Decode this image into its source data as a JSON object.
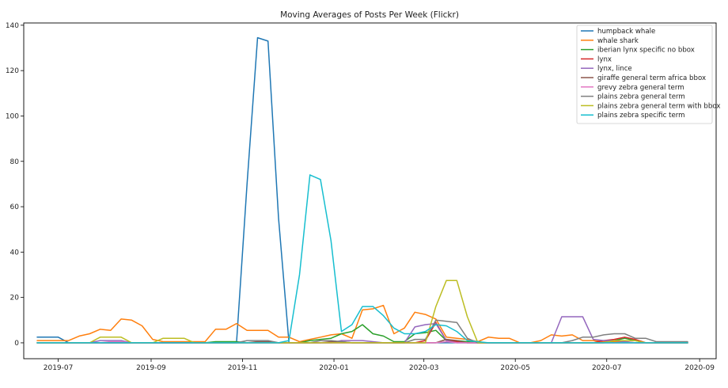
{
  "chart_data": {
    "type": "line",
    "title": "Moving Averages of Posts Per Week (Flickr)",
    "xlabel": "",
    "ylabel": "",
    "x_axis": "date",
    "xlim": [
      "2019-06-08",
      "2020-09-12"
    ],
    "ylim": [
      -7,
      141
    ],
    "x_ticks": [
      "2019-07-01",
      "2019-09-01",
      "2019-11-01",
      "2020-01-01",
      "2020-03-01",
      "2020-05-01",
      "2020-07-01",
      "2020-09-01"
    ],
    "x_tick_labels": [
      "2019-07",
      "2019-09",
      "2019-11",
      "2020-01",
      "2020-03",
      "2020-05",
      "2020-07",
      "2020-09"
    ],
    "y_ticks": [
      0,
      20,
      40,
      60,
      80,
      100,
      120,
      140
    ],
    "y_tick_labels": [
      "0",
      "20",
      "40",
      "60",
      "80",
      "100",
      "120",
      "140"
    ],
    "grid": false,
    "legend_position": "top-right",
    "series": [
      {
        "name": "humpback whale",
        "color": "#1f77b4",
        "points": [
          [
            "2019-06-17",
            2.5
          ],
          [
            "2019-06-24",
            2.5
          ],
          [
            "2019-07-01",
            2.5
          ],
          [
            "2019-07-08",
            0
          ],
          [
            "2019-10-28",
            0
          ],
          [
            "2019-11-04",
            70
          ],
          [
            "2019-11-11",
            134.5
          ],
          [
            "2019-11-18",
            133
          ],
          [
            "2019-11-25",
            55
          ],
          [
            "2019-12-02",
            0
          ],
          [
            "2020-08-24",
            0
          ]
        ]
      },
      {
        "name": "whale shark",
        "color": "#ff7f0e",
        "points": [
          [
            "2019-06-17",
            1
          ],
          [
            "2019-06-24",
            1
          ],
          [
            "2019-07-01",
            1
          ],
          [
            "2019-07-08",
            1
          ],
          [
            "2019-07-15",
            3
          ],
          [
            "2019-07-22",
            4
          ],
          [
            "2019-07-29",
            6
          ],
          [
            "2019-08-05",
            5.5
          ],
          [
            "2019-08-12",
            10.5
          ],
          [
            "2019-08-19",
            10
          ],
          [
            "2019-08-26",
            7.5
          ],
          [
            "2019-09-02",
            1.5
          ],
          [
            "2019-09-09",
            0.5
          ],
          [
            "2019-09-16",
            0.5
          ],
          [
            "2019-09-23",
            0.5
          ],
          [
            "2019-09-30",
            0.5
          ],
          [
            "2019-10-07",
            0.5
          ],
          [
            "2019-10-14",
            6
          ],
          [
            "2019-10-21",
            6
          ],
          [
            "2019-10-28",
            8.5
          ],
          [
            "2019-11-04",
            5.5
          ],
          [
            "2019-11-11",
            5.5
          ],
          [
            "2019-11-18",
            5.5
          ],
          [
            "2019-11-25",
            2.5
          ],
          [
            "2019-12-02",
            2.5
          ],
          [
            "2019-12-09",
            0.5
          ],
          [
            "2019-12-16",
            1.5
          ],
          [
            "2019-12-23",
            2.5
          ],
          [
            "2019-12-30",
            3.5
          ],
          [
            "2020-01-06",
            4
          ],
          [
            "2020-01-13",
            2
          ],
          [
            "2020-01-20",
            14.5
          ],
          [
            "2020-01-27",
            15
          ],
          [
            "2020-02-03",
            16.5
          ],
          [
            "2020-02-10",
            4
          ],
          [
            "2020-02-17",
            6.5
          ],
          [
            "2020-02-24",
            13.5
          ],
          [
            "2020-03-02",
            12.5
          ],
          [
            "2020-03-09",
            10.5
          ],
          [
            "2020-03-16",
            2.5
          ],
          [
            "2020-03-23",
            2
          ],
          [
            "2020-03-30",
            1.5
          ],
          [
            "2020-04-06",
            0.5
          ],
          [
            "2020-04-13",
            2.5
          ],
          [
            "2020-04-20",
            2
          ],
          [
            "2020-04-27",
            2
          ],
          [
            "2020-05-04",
            0
          ],
          [
            "2020-05-11",
            0
          ],
          [
            "2020-05-18",
            1
          ],
          [
            "2020-05-25",
            3.5
          ],
          [
            "2020-06-01",
            3
          ],
          [
            "2020-06-08",
            3.5
          ],
          [
            "2020-06-15",
            1
          ],
          [
            "2020-06-22",
            1
          ],
          [
            "2020-06-29",
            0.5
          ],
          [
            "2020-07-06",
            0.5
          ],
          [
            "2020-07-13",
            0.5
          ],
          [
            "2020-07-20",
            0
          ],
          [
            "2020-08-24",
            0
          ]
        ]
      },
      {
        "name": "iberian lynx specific no bbox",
        "color": "#2ca02c",
        "points": [
          [
            "2019-06-17",
            0
          ],
          [
            "2019-10-07",
            0
          ],
          [
            "2019-10-14",
            0.5
          ],
          [
            "2019-10-21",
            0.5
          ],
          [
            "2019-10-28",
            0.5
          ],
          [
            "2019-11-04",
            0
          ],
          [
            "2019-12-09",
            0
          ],
          [
            "2019-12-16",
            1
          ],
          [
            "2019-12-23",
            1.5
          ],
          [
            "2019-12-30",
            2
          ],
          [
            "2020-01-06",
            4
          ],
          [
            "2020-01-13",
            5
          ],
          [
            "2020-01-20",
            8
          ],
          [
            "2020-01-27",
            4
          ],
          [
            "2020-02-03",
            3
          ],
          [
            "2020-02-10",
            0.5
          ],
          [
            "2020-02-17",
            0.5
          ],
          [
            "2020-02-24",
            4
          ],
          [
            "2020-03-02",
            4.5
          ],
          [
            "2020-03-09",
            5.5
          ],
          [
            "2020-03-16",
            1
          ],
          [
            "2020-03-23",
            1
          ],
          [
            "2020-03-30",
            0.5
          ],
          [
            "2020-04-06",
            0
          ],
          [
            "2020-06-29",
            0
          ],
          [
            "2020-07-06",
            1
          ],
          [
            "2020-07-13",
            2
          ],
          [
            "2020-07-20",
            1
          ],
          [
            "2020-07-27",
            0
          ],
          [
            "2020-08-24",
            0
          ]
        ]
      },
      {
        "name": "lynx",
        "color": "#d62728",
        "points": [
          [
            "2019-06-17",
            0
          ],
          [
            "2020-02-24",
            0
          ],
          [
            "2020-03-02",
            1
          ],
          [
            "2020-03-09",
            9
          ],
          [
            "2020-03-16",
            1
          ],
          [
            "2020-03-23",
            0.5
          ],
          [
            "2020-03-30",
            0
          ],
          [
            "2020-06-22",
            0
          ],
          [
            "2020-06-29",
            1
          ],
          [
            "2020-07-06",
            1.5
          ],
          [
            "2020-07-13",
            2.5
          ],
          [
            "2020-07-20",
            1.5
          ],
          [
            "2020-07-27",
            0
          ],
          [
            "2020-08-24",
            0
          ]
        ]
      },
      {
        "name": "lynx, lince",
        "color": "#9467bd",
        "points": [
          [
            "2019-06-17",
            0
          ],
          [
            "2019-07-22",
            0
          ],
          [
            "2019-07-29",
            1
          ],
          [
            "2019-08-05",
            1
          ],
          [
            "2019-08-12",
            1
          ],
          [
            "2019-08-19",
            0
          ],
          [
            "2019-12-30",
            0
          ],
          [
            "2020-01-06",
            1
          ],
          [
            "2020-01-13",
            1
          ],
          [
            "2020-01-20",
            1
          ],
          [
            "2020-01-27",
            0.5
          ],
          [
            "2020-02-03",
            0
          ],
          [
            "2020-02-17",
            0
          ],
          [
            "2020-02-24",
            7
          ],
          [
            "2020-03-02",
            8
          ],
          [
            "2020-03-09",
            8.5
          ],
          [
            "2020-03-16",
            1
          ],
          [
            "2020-03-23",
            0
          ],
          [
            "2020-05-25",
            0
          ],
          [
            "2020-06-01",
            11.5
          ],
          [
            "2020-06-08",
            11.5
          ],
          [
            "2020-06-15",
            11.5
          ],
          [
            "2020-06-22",
            1.5
          ],
          [
            "2020-06-29",
            1
          ],
          [
            "2020-07-06",
            1
          ],
          [
            "2020-07-13",
            0.5
          ],
          [
            "2020-07-20",
            0
          ],
          [
            "2020-08-24",
            0
          ]
        ]
      },
      {
        "name": "giraffe general term africa bbox",
        "color": "#8c564b",
        "points": [
          [
            "2019-06-17",
            0
          ],
          [
            "2019-11-04",
            0
          ],
          [
            "2019-11-11",
            0.5
          ],
          [
            "2019-11-18",
            0.5
          ],
          [
            "2019-11-25",
            0
          ],
          [
            "2019-12-23",
            0
          ],
          [
            "2019-12-30",
            0.5
          ],
          [
            "2020-01-06",
            0.5
          ],
          [
            "2020-01-13",
            0
          ],
          [
            "2020-03-09",
            0
          ],
          [
            "2020-03-16",
            1.5
          ],
          [
            "2020-03-23",
            1
          ],
          [
            "2020-03-30",
            0
          ],
          [
            "2020-08-24",
            0
          ]
        ]
      },
      {
        "name": "grevy zebra general term",
        "color": "#e377c2",
        "points": [
          [
            "2019-06-17",
            0
          ],
          [
            "2019-07-29",
            0
          ],
          [
            "2019-08-05",
            0.5
          ],
          [
            "2019-08-12",
            0.5
          ],
          [
            "2019-08-19",
            0
          ],
          [
            "2020-03-09",
            0
          ],
          [
            "2020-03-16",
            0.5
          ],
          [
            "2020-03-23",
            0
          ],
          [
            "2020-08-24",
            0
          ]
        ]
      },
      {
        "name": "plains zebra general term",
        "color": "#7f7f7f",
        "points": [
          [
            "2019-06-17",
            0
          ],
          [
            "2019-10-28",
            0
          ],
          [
            "2019-11-04",
            1
          ],
          [
            "2019-11-11",
            1
          ],
          [
            "2019-11-18",
            1
          ],
          [
            "2019-11-25",
            0
          ],
          [
            "2019-12-16",
            0
          ],
          [
            "2019-12-23",
            1
          ],
          [
            "2019-12-30",
            1
          ],
          [
            "2020-01-06",
            0.5
          ],
          [
            "2020-01-13",
            0
          ],
          [
            "2020-02-17",
            0
          ],
          [
            "2020-02-24",
            1.5
          ],
          [
            "2020-03-02",
            1.5
          ],
          [
            "2020-03-09",
            10
          ],
          [
            "2020-03-16",
            9.5
          ],
          [
            "2020-03-23",
            9
          ],
          [
            "2020-03-30",
            2
          ],
          [
            "2020-04-06",
            0
          ],
          [
            "2020-06-01",
            0
          ],
          [
            "2020-06-08",
            1
          ],
          [
            "2020-06-15",
            2.5
          ],
          [
            "2020-06-22",
            2.5
          ],
          [
            "2020-06-29",
            3.5
          ],
          [
            "2020-07-06",
            4
          ],
          [
            "2020-07-13",
            4
          ],
          [
            "2020-07-20",
            2
          ],
          [
            "2020-07-27",
            2
          ],
          [
            "2020-08-03",
            0.5
          ],
          [
            "2020-08-10",
            0.5
          ],
          [
            "2020-08-17",
            0.5
          ],
          [
            "2020-08-24",
            0.5
          ]
        ]
      },
      {
        "name": "plains zebra general term with bbox",
        "color": "#bcbd22",
        "points": [
          [
            "2019-06-17",
            0
          ],
          [
            "2019-07-22",
            0
          ],
          [
            "2019-07-29",
            2.5
          ],
          [
            "2019-08-05",
            2.5
          ],
          [
            "2019-08-12",
            2.5
          ],
          [
            "2019-08-19",
            0
          ],
          [
            "2019-08-26",
            0
          ],
          [
            "2019-09-02",
            0
          ],
          [
            "2019-09-09",
            2
          ],
          [
            "2019-09-16",
            2
          ],
          [
            "2019-09-23",
            2
          ],
          [
            "2019-09-30",
            0
          ],
          [
            "2020-03-02",
            0
          ],
          [
            "2020-03-09",
            16
          ],
          [
            "2020-03-16",
            27.5
          ],
          [
            "2020-03-23",
            27.5
          ],
          [
            "2020-03-30",
            11.5
          ],
          [
            "2020-04-06",
            0
          ],
          [
            "2020-06-29",
            0
          ],
          [
            "2020-07-06",
            1
          ],
          [
            "2020-07-13",
            1
          ],
          [
            "2020-07-20",
            1
          ],
          [
            "2020-07-27",
            0
          ],
          [
            "2020-08-24",
            0
          ]
        ]
      },
      {
        "name": "plains zebra specific term",
        "color": "#17becf",
        "points": [
          [
            "2019-06-17",
            0
          ],
          [
            "2019-11-25",
            0
          ],
          [
            "2019-12-02",
            1
          ],
          [
            "2019-12-09",
            30
          ],
          [
            "2019-12-16",
            74
          ],
          [
            "2019-12-23",
            72
          ],
          [
            "2019-12-30",
            45
          ],
          [
            "2020-01-06",
            5
          ],
          [
            "2020-01-13",
            8
          ],
          [
            "2020-01-20",
            16
          ],
          [
            "2020-01-27",
            16
          ],
          [
            "2020-02-03",
            12
          ],
          [
            "2020-02-10",
            6.5
          ],
          [
            "2020-02-17",
            4
          ],
          [
            "2020-02-24",
            4
          ],
          [
            "2020-03-02",
            5
          ],
          [
            "2020-03-09",
            8
          ],
          [
            "2020-03-16",
            7.5
          ],
          [
            "2020-03-23",
            5
          ],
          [
            "2020-03-30",
            1
          ],
          [
            "2020-04-06",
            0.5
          ],
          [
            "2020-04-13",
            0
          ],
          [
            "2020-08-24",
            0
          ]
        ]
      }
    ]
  }
}
